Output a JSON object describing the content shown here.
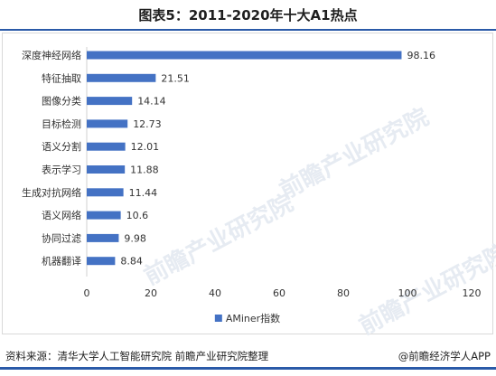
{
  "header": {
    "title": "图表5：2011-2020年十大A1热点"
  },
  "chart_data": {
    "type": "bar",
    "orientation": "horizontal",
    "categories": [
      "深度神经网络",
      "特征抽取",
      "图像分类",
      "目标检测",
      "语义分割",
      "表示学习",
      "生成对抗网络",
      "语义网络",
      "协同过滤",
      "机器翻译"
    ],
    "series": [
      {
        "name": "AMiner指数",
        "values": [
          98.16,
          21.51,
          14.14,
          12.73,
          12.01,
          11.88,
          11.44,
          10.6,
          9.98,
          8.84
        ]
      }
    ],
    "value_labels": [
      "98.16",
      "21.51",
      "14.14",
      "12.73",
      "12.01",
      "11.88",
      "11.44",
      "10.6",
      "9.98",
      "8.84"
    ],
    "xlim": [
      0,
      120
    ],
    "xticks": [
      "0",
      "20",
      "40",
      "60",
      "80",
      "100",
      "120"
    ],
    "grid": false,
    "legend": "bottom-center",
    "bar_color": "#4472c4"
  },
  "footer": {
    "source": "资料来源：清华大学人工智能研究院 前瞻产业研究院整理",
    "brand": "@前瞻经济学人APP"
  },
  "watermark_text": "前瞻产业研究院"
}
